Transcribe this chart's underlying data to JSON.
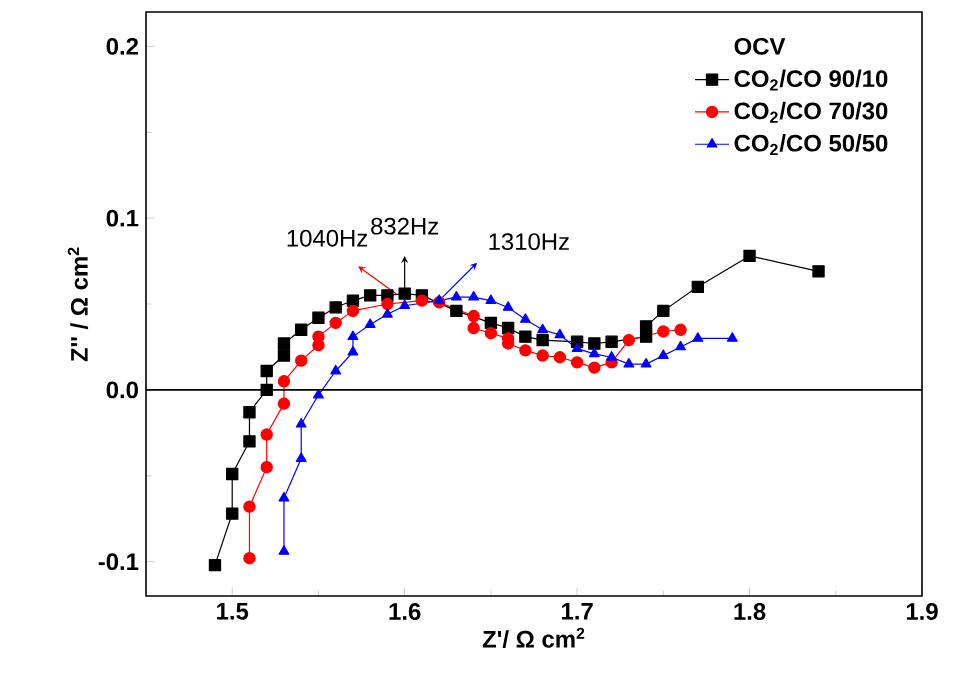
{
  "chart_data": {
    "type": "line",
    "xlabel": "Z'/ Ω cm$^{2}$",
    "ylabel": "Z'' / Ω cm$^{2}$",
    "legend_title": "OCV",
    "xlim": [
      1.45,
      1.9
    ],
    "ylim": [
      -0.12,
      0.22
    ],
    "xticks": [
      1.5,
      1.6,
      1.7,
      1.8,
      1.9
    ],
    "yticks": [
      {
        "value": -0.1,
        "label": "-0.1"
      },
      {
        "value": 0,
        "label": "0.0"
      },
      0.1,
      0.2
    ],
    "legend": "top right",
    "grid": false,
    "ref_lines": [
      {
        "axis": "y",
        "value": 0,
        "color": "#000000"
      }
    ],
    "annotations": [
      {
        "text": "832Hz",
        "x": 1.6,
        "y": 0.056
      },
      {
        "text": "1040Hz",
        "x": 1.595,
        "y": 0.056
      },
      {
        "text": "1310Hz",
        "x": 1.62,
        "y": 0.052
      }
    ],
    "series": [
      {
        "name": "CO$_{2}$/CO 90/10",
        "color": "#000000",
        "marker": "square",
        "x": [
          1.49,
          1.5,
          1.5,
          1.51,
          1.51,
          1.52,
          1.52,
          1.53,
          1.53,
          1.54,
          1.55,
          1.56,
          1.57,
          1.58,
          1.59,
          1.6,
          1.61,
          1.63,
          1.65,
          1.66,
          1.67,
          1.68,
          1.7,
          1.71,
          1.72,
          1.74,
          1.74,
          1.75,
          1.77,
          1.8,
          1.84
        ],
        "values": [
          -0.102,
          -0.072,
          -0.049,
          -0.03,
          -0.013,
          0.0,
          0.011,
          0.02,
          0.027,
          0.035,
          0.042,
          0.048,
          0.052,
          0.055,
          0.055,
          0.056,
          0.055,
          0.046,
          0.039,
          0.036,
          0.031,
          0.029,
          0.028,
          0.027,
          0.028,
          0.031,
          0.037,
          0.046,
          0.06,
          0.078,
          0.069
        ]
      },
      {
        "name": "CO$_{2}$/CO 70/30",
        "color": "#ff0000",
        "marker": "circle",
        "x": [
          1.51,
          1.51,
          1.52,
          1.52,
          1.53,
          1.53,
          1.54,
          1.55,
          1.55,
          1.56,
          1.57,
          1.59,
          1.61,
          1.62,
          1.64,
          1.64,
          1.65,
          1.66,
          1.66,
          1.67,
          1.68,
          1.69,
          1.7,
          1.71,
          1.72,
          1.73,
          1.75,
          1.76
        ],
        "values": [
          -0.098,
          -0.068,
          -0.045,
          -0.026,
          -0.008,
          0.005,
          0.017,
          0.026,
          0.031,
          0.039,
          0.046,
          0.05,
          0.052,
          0.051,
          0.043,
          0.036,
          0.033,
          0.03,
          0.027,
          0.023,
          0.02,
          0.019,
          0.016,
          0.013,
          0.016,
          0.029,
          0.034,
          0.035
        ]
      },
      {
        "name": "CO$_{2}$/CO 50/50",
        "color": "#0000ff",
        "marker": "triangle",
        "x": [
          1.53,
          1.53,
          1.54,
          1.54,
          1.55,
          1.56,
          1.57,
          1.57,
          1.58,
          1.59,
          1.6,
          1.62,
          1.63,
          1.64,
          1.65,
          1.66,
          1.67,
          1.68,
          1.69,
          1.7,
          1.71,
          1.72,
          1.73,
          1.74,
          1.75,
          1.76,
          1.77,
          1.79
        ],
        "values": [
          -0.094,
          -0.063,
          -0.04,
          -0.02,
          -0.003,
          0.011,
          0.022,
          0.031,
          0.038,
          0.044,
          0.049,
          0.052,
          0.054,
          0.054,
          0.052,
          0.048,
          0.041,
          0.035,
          0.032,
          0.024,
          0.021,
          0.019,
          0.015,
          0.015,
          0.02,
          0.025,
          0.03,
          0.03
        ]
      }
    ]
  }
}
